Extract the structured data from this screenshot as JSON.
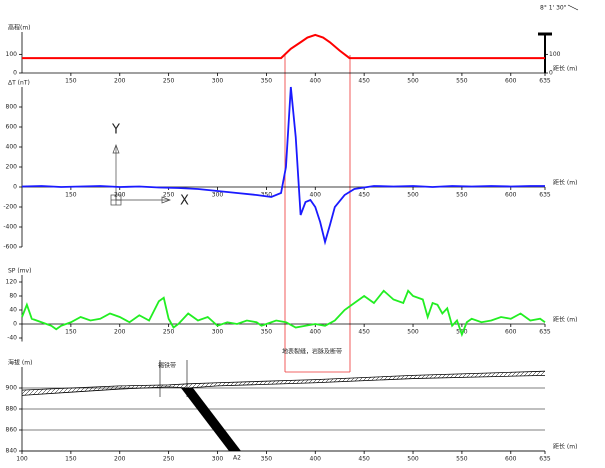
{
  "scale_label": "8° 1' 30\"",
  "chart_data": [
    {
      "type": "line",
      "y_label": "高程(m)",
      "x_label": "距长 (m)",
      "xlim": [
        100,
        635
      ],
      "xticks": [
        150,
        200,
        250,
        300,
        350,
        400,
        450,
        500,
        550,
        600,
        635
      ],
      "ylim": [
        0,
        220
      ],
      "yticks": [
        0,
        100
      ],
      "right_axis": true,
      "x": [
        100,
        365,
        375,
        385,
        392,
        400,
        408,
        415,
        425,
        435,
        635
      ],
      "series": [
        {
          "color": "#ff0000",
          "values": [
            80,
            80,
            130,
            165,
            190,
            204,
            190,
            165,
            120,
            80,
            80
          ]
        }
      ]
    },
    {
      "type": "line",
      "y_label": "ΔT (nT)",
      "x_label": "距长 (m)",
      "annotations": [
        "Y",
        "X"
      ],
      "xlim": [
        100,
        635
      ],
      "xticks": [
        150,
        200,
        250,
        300,
        350,
        400,
        450,
        500,
        550,
        600,
        635
      ],
      "ylim": [
        -600,
        1000
      ],
      "yticks": [
        -600,
        -400,
        -200,
        0,
        200,
        400,
        600,
        800
      ],
      "x": [
        100,
        120,
        140,
        160,
        180,
        200,
        220,
        240,
        260,
        280,
        300,
        320,
        340,
        355,
        365,
        370,
        375,
        380,
        385,
        390,
        395,
        400,
        405,
        410,
        415,
        420,
        430,
        440,
        460,
        480,
        500,
        520,
        540,
        560,
        580,
        600,
        620,
        635
      ],
      "series": [
        {
          "color": "#1a1aff",
          "values": [
            5,
            10,
            0,
            5,
            10,
            0,
            5,
            -5,
            -10,
            -20,
            -40,
            -60,
            -80,
            -100,
            -60,
            200,
            1000,
            500,
            -280,
            -150,
            -130,
            -200,
            -350,
            -550,
            -380,
            -200,
            -80,
            -20,
            10,
            5,
            10,
            0,
            10,
            5,
            10,
            5,
            10,
            10
          ]
        }
      ]
    },
    {
      "type": "line",
      "y_label": "SP (mv)",
      "x_label": "距长 (m)",
      "xlim": [
        100,
        635
      ],
      "xticks": [
        150,
        200,
        250,
        300,
        350,
        400,
        450,
        500,
        550,
        600,
        635
      ],
      "ylim": [
        -50,
        140
      ],
      "yticks": [
        -40,
        0,
        40,
        80,
        120
      ],
      "x": [
        100,
        105,
        110,
        120,
        130,
        135,
        140,
        150,
        160,
        170,
        180,
        190,
        200,
        210,
        220,
        230,
        240,
        245,
        250,
        255,
        260,
        270,
        280,
        290,
        300,
        310,
        320,
        330,
        340,
        345,
        350,
        360,
        370,
        380,
        390,
        400,
        410,
        420,
        430,
        440,
        450,
        460,
        470,
        480,
        490,
        495,
        500,
        510,
        515,
        520,
        525,
        530,
        535,
        540,
        545,
        550,
        555,
        560,
        570,
        580,
        590,
        600,
        610,
        620,
        630,
        635
      ],
      "series": [
        {
          "color": "#22ee22",
          "values": [
            20,
            55,
            15,
            5,
            -5,
            -15,
            -5,
            5,
            20,
            10,
            15,
            30,
            20,
            5,
            25,
            10,
            65,
            75,
            15,
            -10,
            0,
            30,
            10,
            20,
            -5,
            5,
            0,
            10,
            5,
            -5,
            0,
            10,
            5,
            -10,
            -5,
            0,
            -5,
            10,
            40,
            60,
            80,
            60,
            95,
            70,
            60,
            95,
            80,
            70,
            20,
            60,
            55,
            30,
            45,
            -5,
            10,
            -30,
            5,
            15,
            5,
            10,
            20,
            15,
            30,
            10,
            15,
            5
          ]
        }
      ]
    },
    {
      "type": "section",
      "y_label": "海拔 (m)",
      "x_label": "距长 (m)",
      "grid": true,
      "annotations": [
        "褐铁带",
        "地表裂缝，岩脉及断带",
        "A2"
      ],
      "xlim": [
        100,
        635
      ],
      "xticks": [
        100,
        150,
        200,
        250,
        300,
        350,
        400,
        450,
        500,
        550,
        600,
        635
      ],
      "ylim": [
        840,
        920
      ],
      "yticks": [
        840,
        860,
        880,
        900
      ],
      "x": [
        100,
        150,
        200,
        250,
        270,
        300,
        400,
        500,
        635
      ],
      "series": [
        {
          "color": "#000000",
          "values": [
            898,
            900,
            902,
            903,
            904,
            905,
            908,
            912,
            916
          ]
        },
        {
          "color": "#000000",
          "values": [
            893,
            896,
            899,
            901,
            900,
            902,
            905,
            909,
            912
          ]
        }
      ]
    }
  ]
}
